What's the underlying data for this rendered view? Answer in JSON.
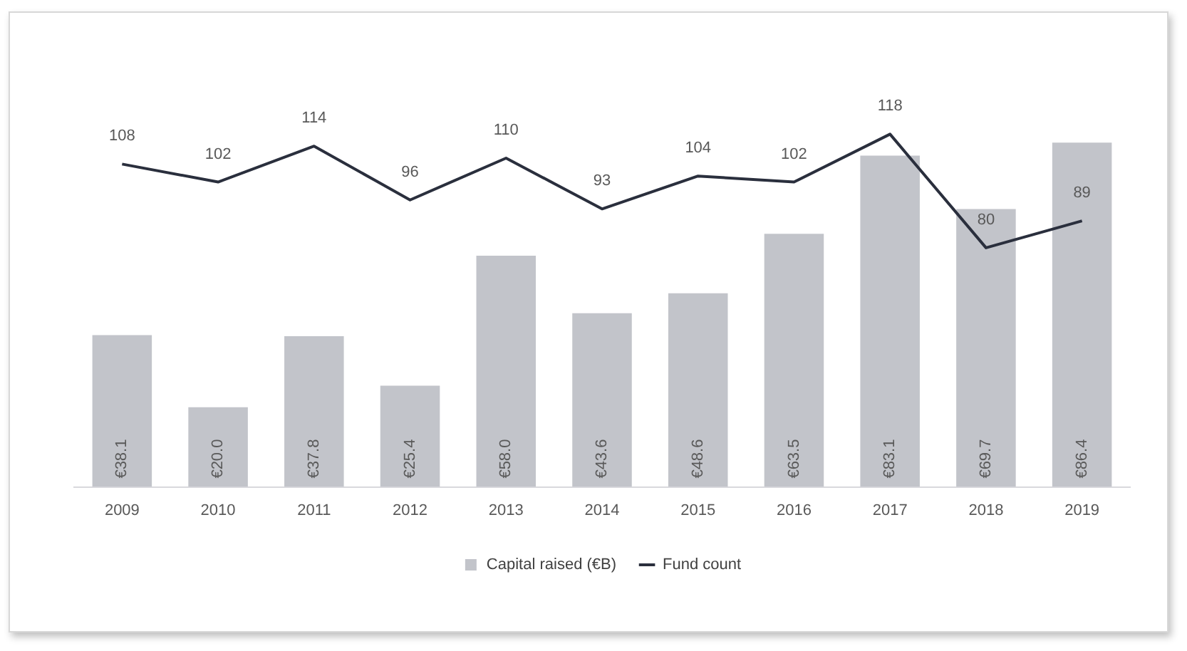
{
  "chart_data": {
    "type": "bar",
    "categories": [
      "2009",
      "2010",
      "2011",
      "2012",
      "2013",
      "2014",
      "2015",
      "2016",
      "2017",
      "2018",
      "2019"
    ],
    "series": [
      {
        "name": "Capital raised (€B)",
        "color": "#c2c4ca",
        "values": [
          38.1,
          20.0,
          37.8,
          25.4,
          58.0,
          43.6,
          48.6,
          63.5,
          83.1,
          69.7,
          86.4
        ],
        "value_labels": [
          "€38.1",
          "€20.0",
          "€37.8",
          "€25.4",
          "€58.0",
          "€43.6",
          "€48.6",
          "€63.5",
          "€83.1",
          "€69.7",
          "€86.4"
        ]
      },
      {
        "name": "Fund count",
        "type": "line",
        "axis": "y2",
        "color": "#2a2f3d",
        "marker": "none",
        "values": [
          108,
          102,
          114,
          96,
          110,
          93,
          104,
          102,
          118,
          80,
          89
        ],
        "value_labels": [
          "108",
          "102",
          "114",
          "96",
          "110",
          "93",
          "104",
          "102",
          "118",
          "80",
          "89"
        ]
      }
    ],
    "legend": "bottom",
    "tick_labels": "x",
    "grid": false
  }
}
